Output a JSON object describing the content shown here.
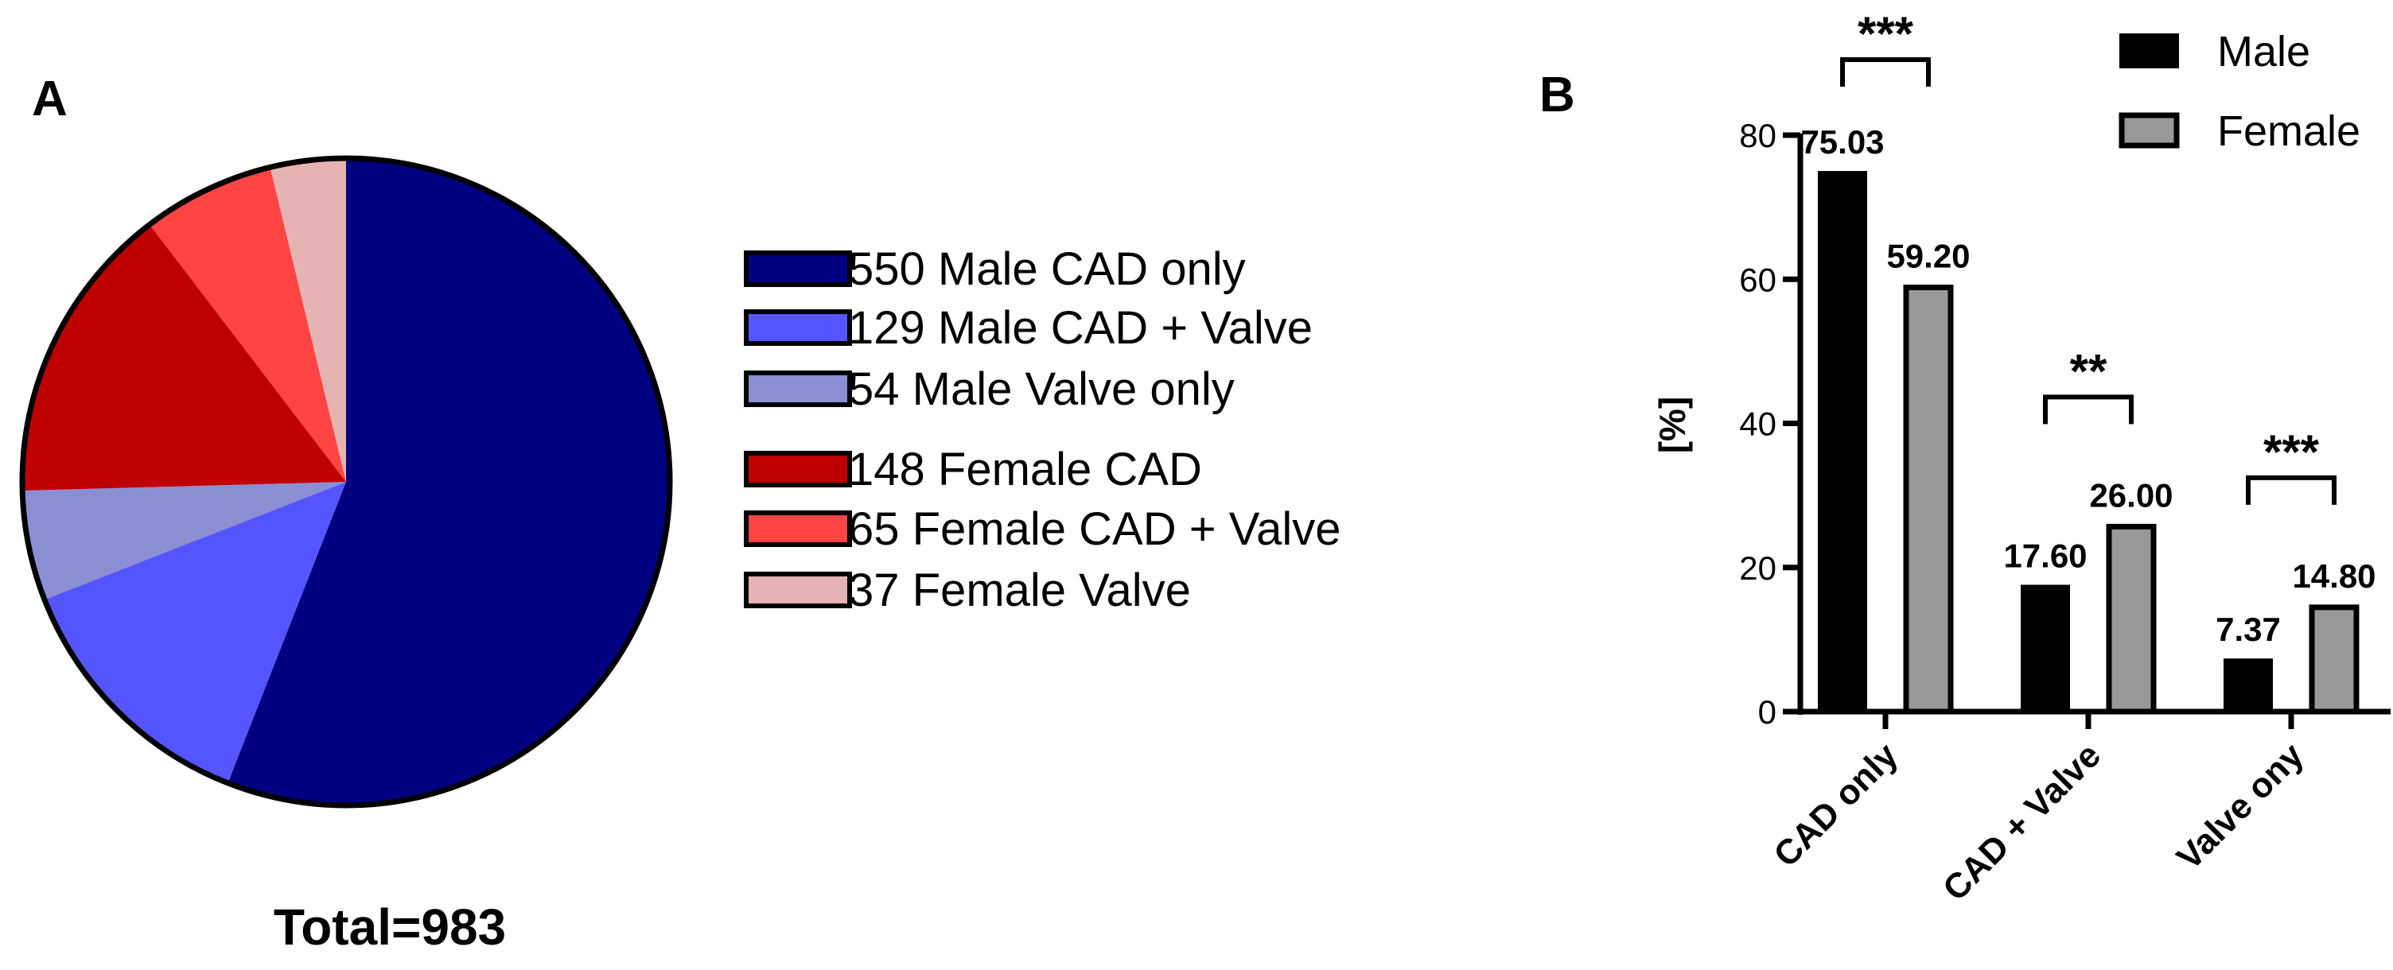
{
  "panel_a": {
    "letter": "A",
    "total": "Total=983"
  },
  "panel_b": {
    "letter": "B"
  },
  "chart_data": [
    {
      "type": "pie",
      "title": "",
      "slices": [
        {
          "label": "550 Male CAD only",
          "value": 550,
          "color": "#000080"
        },
        {
          "label": "129 Male CAD + Valve",
          "value": 129,
          "color": "#5555FF"
        },
        {
          "label": "54 Male Valve only",
          "value": 54,
          "color": "#8A8FD4"
        },
        {
          "label": "148 Female CAD",
          "value": 148,
          "color": "#BF0000"
        },
        {
          "label": "65 Female CAD + Valve",
          "value": 65,
          "color": "#FF4444"
        },
        {
          "label": "37 Female Valve",
          "value": 37,
          "color": "#E6B3B3"
        }
      ],
      "total_label": "Total=983"
    },
    {
      "type": "bar",
      "title": "",
      "categories": [
        "CAD only",
        "CAD + Valve",
        "Valve ony"
      ],
      "series": [
        {
          "name": "Male",
          "values": [
            75.03,
            17.6,
            7.37
          ],
          "color": "#000000"
        },
        {
          "name": "Female",
          "values": [
            59.2,
            26.0,
            14.8
          ],
          "color": "#999999"
        }
      ],
      "data_labels": [
        [
          "75.03",
          "17.60",
          "7.37"
        ],
        [
          "59.20",
          "26.00",
          "14.80"
        ]
      ],
      "significance": [
        "***",
        "**",
        "***"
      ],
      "xlabel": "",
      "ylabel": "[%]",
      "ylim": [
        0,
        80
      ],
      "yticks": [
        "0",
        "20",
        "40",
        "60",
        "80"
      ],
      "grid": false,
      "legend_position": "top-right"
    }
  ]
}
